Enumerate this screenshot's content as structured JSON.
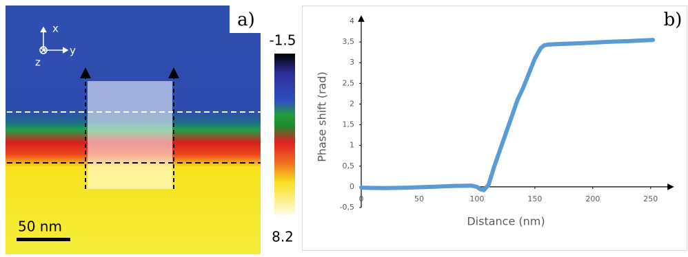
{
  "image_panel": {
    "label": "a)",
    "axis_labels": [
      "x",
      "y",
      "z"
    ],
    "scale_bar": "50 nm",
    "colorbar": {
      "min": -1.5,
      "max": 8.2
    }
  },
  "chart_data": {
    "type": "line",
    "label": "b)",
    "xlabel": "Distance (nm)",
    "ylabel": "Phase shift (rad)",
    "xlim": [
      0,
      265
    ],
    "ylim": [
      -0.5,
      4
    ],
    "xticks": [
      0,
      50,
      100,
      150,
      200,
      250
    ],
    "yticks": [
      {
        "value": -0.5,
        "label": "-0,5"
      },
      0,
      {
        "value": 0.5,
        "label": "0,5"
      },
      1,
      {
        "value": 1.5,
        "label": "1,5"
      },
      2,
      {
        "value": 2.5,
        "label": "2,5"
      },
      3,
      {
        "value": 3.5,
        "label": "3,5"
      },
      4
    ],
    "series": [
      {
        "name": "Phase shift",
        "color": "#5b9bd5",
        "x": [
          0,
          20,
          40,
          60,
          80,
          95,
          100,
          103,
          106,
          110,
          115,
          120,
          125,
          130,
          135,
          140,
          145,
          150,
          155,
          158,
          162,
          170,
          190,
          210,
          230,
          252
        ],
        "values": [
          -0.02,
          -0.03,
          -0.02,
          0.0,
          0.02,
          0.03,
          0.0,
          -0.06,
          -0.08,
          0.05,
          0.5,
          0.9,
          1.3,
          1.7,
          2.1,
          2.4,
          2.75,
          3.1,
          3.35,
          3.42,
          3.44,
          3.45,
          3.47,
          3.5,
          3.52,
          3.55
        ]
      }
    ]
  }
}
